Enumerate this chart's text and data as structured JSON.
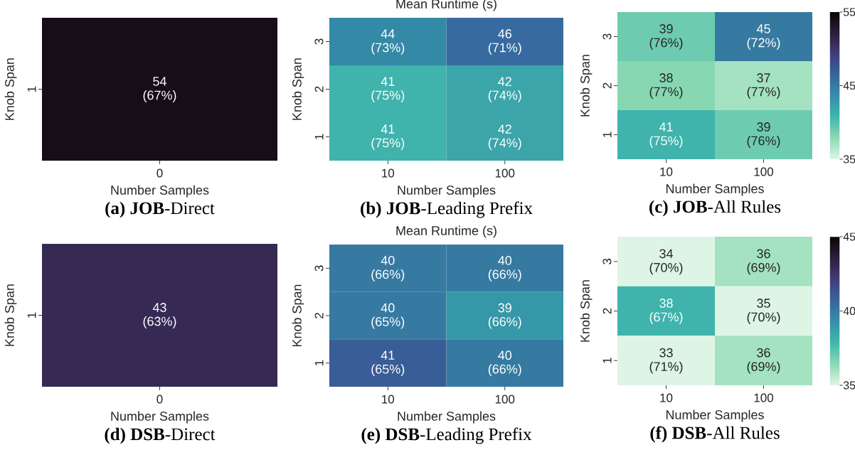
{
  "chart_data": [
    {
      "type": "heatmap",
      "categories": [
        "0"
      ],
      "y_categories": [
        "1"
      ],
      "cells": [
        [
          54
        ]
      ],
      "data_labels": true,
      "xlabel": "Number Samples",
      "ylabel": "Knob Span",
      "annotations": [
        "**(a) JOB**-Direct",
        "(67%)"
      ]
    },
    {
      "type": "heatmap",
      "title": "Mean Runtime (s)",
      "categories": [
        "10",
        "100"
      ],
      "y_categories": [
        "3",
        "2",
        "1"
      ],
      "cells": [
        [
          44,
          46
        ],
        [
          41,
          42
        ],
        [
          41,
          42
        ]
      ],
      "data_labels": true,
      "xlabel": "Number Samples",
      "ylabel": "Knob Span",
      "annotations": [
        "**(b) JOB**-Leading Prefix",
        "(73%)",
        "(71%)",
        "(75%)",
        "(74%)",
        "(75%)",
        "(74%)"
      ]
    },
    {
      "type": "heatmap",
      "categories": [
        "10",
        "100"
      ],
      "y_categories": [
        "3",
        "2",
        "1"
      ],
      "cells": [
        [
          39,
          45
        ],
        [
          38,
          37
        ],
        [
          41,
          39
        ]
      ],
      "data_labels": true,
      "xlabel": "Number Samples",
      "ylabel": "Knob Span",
      "clim": [
        35,
        55
      ],
      "cticks": [
        35,
        45,
        55
      ],
      "annotations": [
        "**(c) JOB**-All Rules",
        "(76%)",
        "(72%)",
        "(77%)",
        "(77%)",
        "(75%)",
        "(76%)"
      ]
    },
    {
      "type": "heatmap",
      "categories": [
        "0"
      ],
      "y_categories": [
        "1"
      ],
      "cells": [
        [
          43
        ]
      ],
      "data_labels": true,
      "xlabel": "Number Samples",
      "ylabel": "Knob Span",
      "annotations": [
        "**(d) DSB**-Direct",
        "(63%)"
      ]
    },
    {
      "type": "heatmap",
      "title": "Mean Runtime (s)",
      "categories": [
        "10",
        "100"
      ],
      "y_categories": [
        "3",
        "2",
        "1"
      ],
      "cells": [
        [
          40,
          40
        ],
        [
          40,
          39
        ],
        [
          41,
          40
        ]
      ],
      "data_labels": true,
      "xlabel": "Number Samples",
      "ylabel": "Knob Span",
      "annotations": [
        "**(e) DSB**-Leading Prefix",
        "(66%)",
        "(66%)",
        "(65%)",
        "(66%)",
        "(65%)",
        "(66%)"
      ]
    },
    {
      "type": "heatmap",
      "categories": [
        "10",
        "100"
      ],
      "y_categories": [
        "3",
        "2",
        "1"
      ],
      "cells": [
        [
          34,
          36
        ],
        [
          38,
          35
        ],
        [
          33,
          36
        ]
      ],
      "data_labels": true,
      "xlabel": "Number Samples",
      "ylabel": "Knob Span",
      "clim": [
        35,
        45
      ],
      "cticks": [
        35,
        40,
        45
      ],
      "annotations": [
        "**(f) DSB**-All Rules",
        "(70%)",
        "(69%)",
        "(67%)",
        "(70%)",
        "(71%)",
        "(69%)"
      ]
    }
  ]
}
